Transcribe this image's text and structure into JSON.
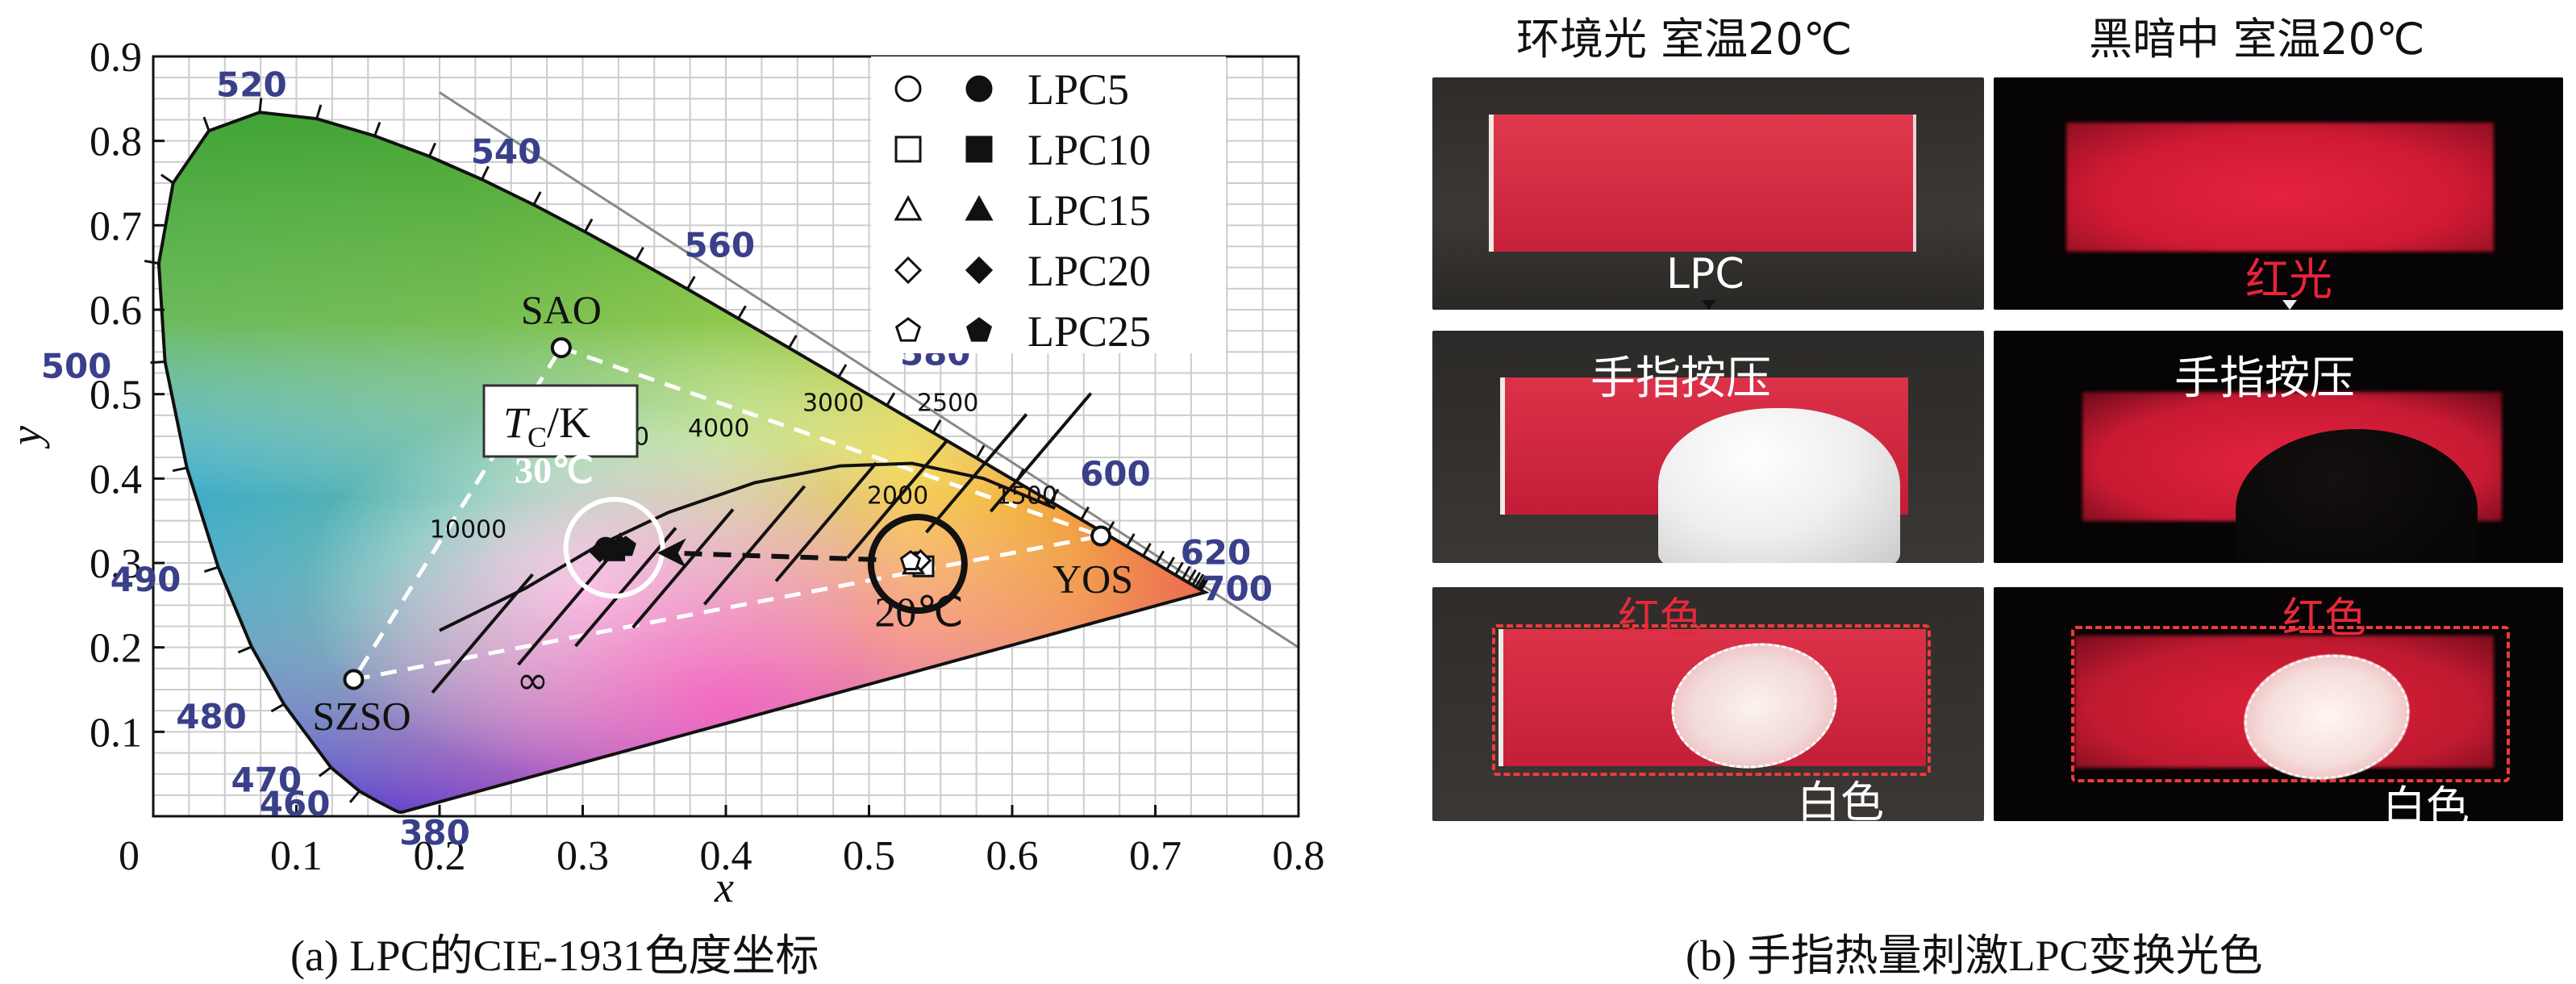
{
  "chart_data": {
    "type": "scatter",
    "title": "",
    "xlabel": "x",
    "ylabel": "y",
    "xlim": [
      0,
      0.8
    ],
    "ylim": [
      0,
      0.9
    ],
    "x_ticks": [
      "0",
      "0.1",
      "0.2",
      "0.3",
      "0.4",
      "0.5",
      "0.6",
      "0.7",
      "0.8"
    ],
    "y_ticks": [
      "0.1",
      "0.2",
      "0.3",
      "0.4",
      "0.5",
      "0.6",
      "0.7",
      "0.8",
      "0.9"
    ],
    "grid": true,
    "legend_position": "top-right",
    "legend": [
      {
        "label": "LPC5",
        "marker": "circle"
      },
      {
        "label": "LPC10",
        "marker": "square"
      },
      {
        "label": "LPC15",
        "marker": "triangle"
      },
      {
        "label": "LPC20",
        "marker": "diamond"
      },
      {
        "label": "LPC25",
        "marker": "pentagon"
      }
    ],
    "wavelength_labels": [
      {
        "text": "520",
        "x": 0.0743,
        "y": 0.8338
      },
      {
        "text": "540",
        "x": 0.2296,
        "y": 0.7543
      },
      {
        "text": "560",
        "x": 0.3731,
        "y": 0.6245
      },
      {
        "text": "580",
        "x": 0.5125,
        "y": 0.4866
      },
      {
        "text": "600",
        "x": 0.627,
        "y": 0.3725
      },
      {
        "text": "620",
        "x": 0.6915,
        "y": 0.3083
      },
      {
        "text": "700",
        "x": 0.7347,
        "y": 0.2653
      },
      {
        "text": "500",
        "x": 0.0082,
        "y": 0.5384
      },
      {
        "text": "490",
        "x": 0.0454,
        "y": 0.295
      },
      {
        "text": "480",
        "x": 0.0913,
        "y": 0.1327
      },
      {
        "text": "470",
        "x": 0.1241,
        "y": 0.0578
      },
      {
        "text": "460",
        "x": 0.144,
        "y": 0.0297
      },
      {
        "text": "380",
        "x": 0.1741,
        "y": 0.005
      }
    ],
    "phosphors": [
      {
        "name": "SAO",
        "x": 0.285,
        "y": 0.555
      },
      {
        "name": "YOS",
        "x": 0.662,
        "y": 0.332
      },
      {
        "name": "SZSO",
        "x": 0.14,
        "y": 0.162
      }
    ],
    "planckian_locus_labels": [
      "∞",
      "10000",
      "6000",
      "4000",
      "3000",
      "2500",
      "2000",
      "1500"
    ],
    "locus_title_t": "T",
    "locus_title_sub": "C",
    "locus_title_unit": "/K",
    "annotations": [
      "30℃",
      "20℃"
    ],
    "series": [
      {
        "name": "LPC5",
        "points": [
          {
            "x": 0.533,
            "y": 0.301,
            "state": "20℃",
            "fill": "open"
          },
          {
            "x": 0.316,
            "y": 0.318,
            "state": "30℃",
            "fill": "filled"
          }
        ]
      },
      {
        "name": "LPC10",
        "points": [
          {
            "x": 0.538,
            "y": 0.296,
            "state": "20℃",
            "fill": "open"
          },
          {
            "x": 0.322,
            "y": 0.315,
            "state": "30℃",
            "fill": "filled"
          }
        ]
      },
      {
        "name": "LPC15",
        "points": [
          {
            "x": 0.531,
            "y": 0.297,
            "state": "20℃",
            "fill": "open"
          },
          {
            "x": 0.326,
            "y": 0.322,
            "state": "30℃",
            "fill": "filled"
          }
        ]
      },
      {
        "name": "LPC20",
        "points": [
          {
            "x": 0.536,
            "y": 0.303,
            "state": "20℃",
            "fill": "open"
          },
          {
            "x": 0.312,
            "y": 0.314,
            "state": "30℃",
            "fill": "filled"
          }
        ]
      },
      {
        "name": "LPC25",
        "points": [
          {
            "x": 0.529,
            "y": 0.302,
            "state": "20℃",
            "fill": "open"
          },
          {
            "x": 0.33,
            "y": 0.319,
            "state": "30℃",
            "fill": "filled"
          }
        ]
      }
    ]
  },
  "caption_a": "(a) LPC的CIE-1931色度坐标",
  "caption_b": "(b) 手指热量刺激LPC变换光色",
  "photos": {
    "header_left": "环境光 室温20℃",
    "header_right": "黑暗中 室温20℃",
    "label_lpc": "LPC",
    "label_red_light": "红光",
    "label_press_left": "手指按压",
    "label_press_right": "手指按压",
    "label_red_left": "红色",
    "label_white_left": "白色",
    "label_red_right": "红色",
    "label_white_right": "白色"
  },
  "colors": {
    "fabric_red": "#d9283f",
    "glow_red": "#e0203a",
    "annotation_red": "#e03a2f",
    "wavelength_blue": "#3a3f8a"
  }
}
